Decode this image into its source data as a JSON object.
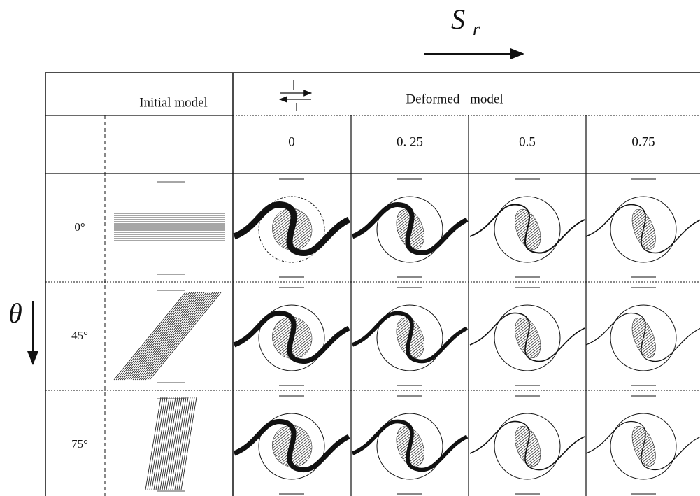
{
  "axes": {
    "horizontal": {
      "symbol": "S",
      "subscript": "r"
    },
    "vertical": {
      "symbol": "θ"
    }
  },
  "table": {
    "header": {
      "initial": "Initial model",
      "deformed": "Deformed model"
    },
    "columns": [
      "0",
      "0. 25",
      "0.5",
      "0.75"
    ],
    "rows": [
      "0°",
      "45°",
      "75°"
    ]
  }
}
